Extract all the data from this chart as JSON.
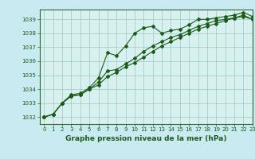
{
  "title": "Graphe pression niveau de la mer (hPa)",
  "xlim": [
    -0.5,
    23
  ],
  "ylim": [
    1031.5,
    1039.7
  ],
  "yticks": [
    1032,
    1033,
    1034,
    1035,
    1036,
    1037,
    1038,
    1039
  ],
  "xticks": [
    0,
    1,
    2,
    3,
    4,
    5,
    6,
    7,
    8,
    9,
    10,
    11,
    12,
    13,
    14,
    15,
    16,
    17,
    18,
    19,
    20,
    21,
    22,
    23
  ],
  "bg_color": "#c8eaf0",
  "plot_bg_color": "#d8f0f0",
  "grid_color": "#99ccbb",
  "line_color": "#1a5c1a",
  "border_color": "#336633",
  "series": [
    [
      1032.0,
      1032.2,
      1033.0,
      1033.6,
      1033.7,
      1034.1,
      1034.8,
      1036.6,
      1036.4,
      1037.1,
      1038.0,
      1038.4,
      1038.5,
      1038.0,
      1038.2,
      1038.3,
      1038.6,
      1039.0,
      1039.0,
      1039.1,
      1039.2,
      1039.3,
      1039.5,
      1039.2
    ],
    [
      1032.0,
      1032.2,
      1033.0,
      1033.5,
      1033.6,
      1034.0,
      1034.5,
      1035.3,
      1035.4,
      1035.8,
      1036.2,
      1036.7,
      1037.1,
      1037.4,
      1037.7,
      1037.9,
      1038.2,
      1038.5,
      1038.7,
      1038.9,
      1039.0,
      1039.1,
      1039.3,
      1039.0
    ],
    [
      1032.0,
      1032.2,
      1033.0,
      1033.5,
      1033.6,
      1034.0,
      1034.3,
      1034.9,
      1035.2,
      1035.6,
      1035.9,
      1036.3,
      1036.7,
      1037.1,
      1037.4,
      1037.7,
      1038.0,
      1038.3,
      1038.5,
      1038.7,
      1038.9,
      1039.1,
      1039.2,
      1039.0
    ]
  ],
  "marker": "D",
  "marker_size": 2.0,
  "linewidth": 0.8,
  "title_fontsize": 6.5,
  "tick_fontsize": 5.0
}
